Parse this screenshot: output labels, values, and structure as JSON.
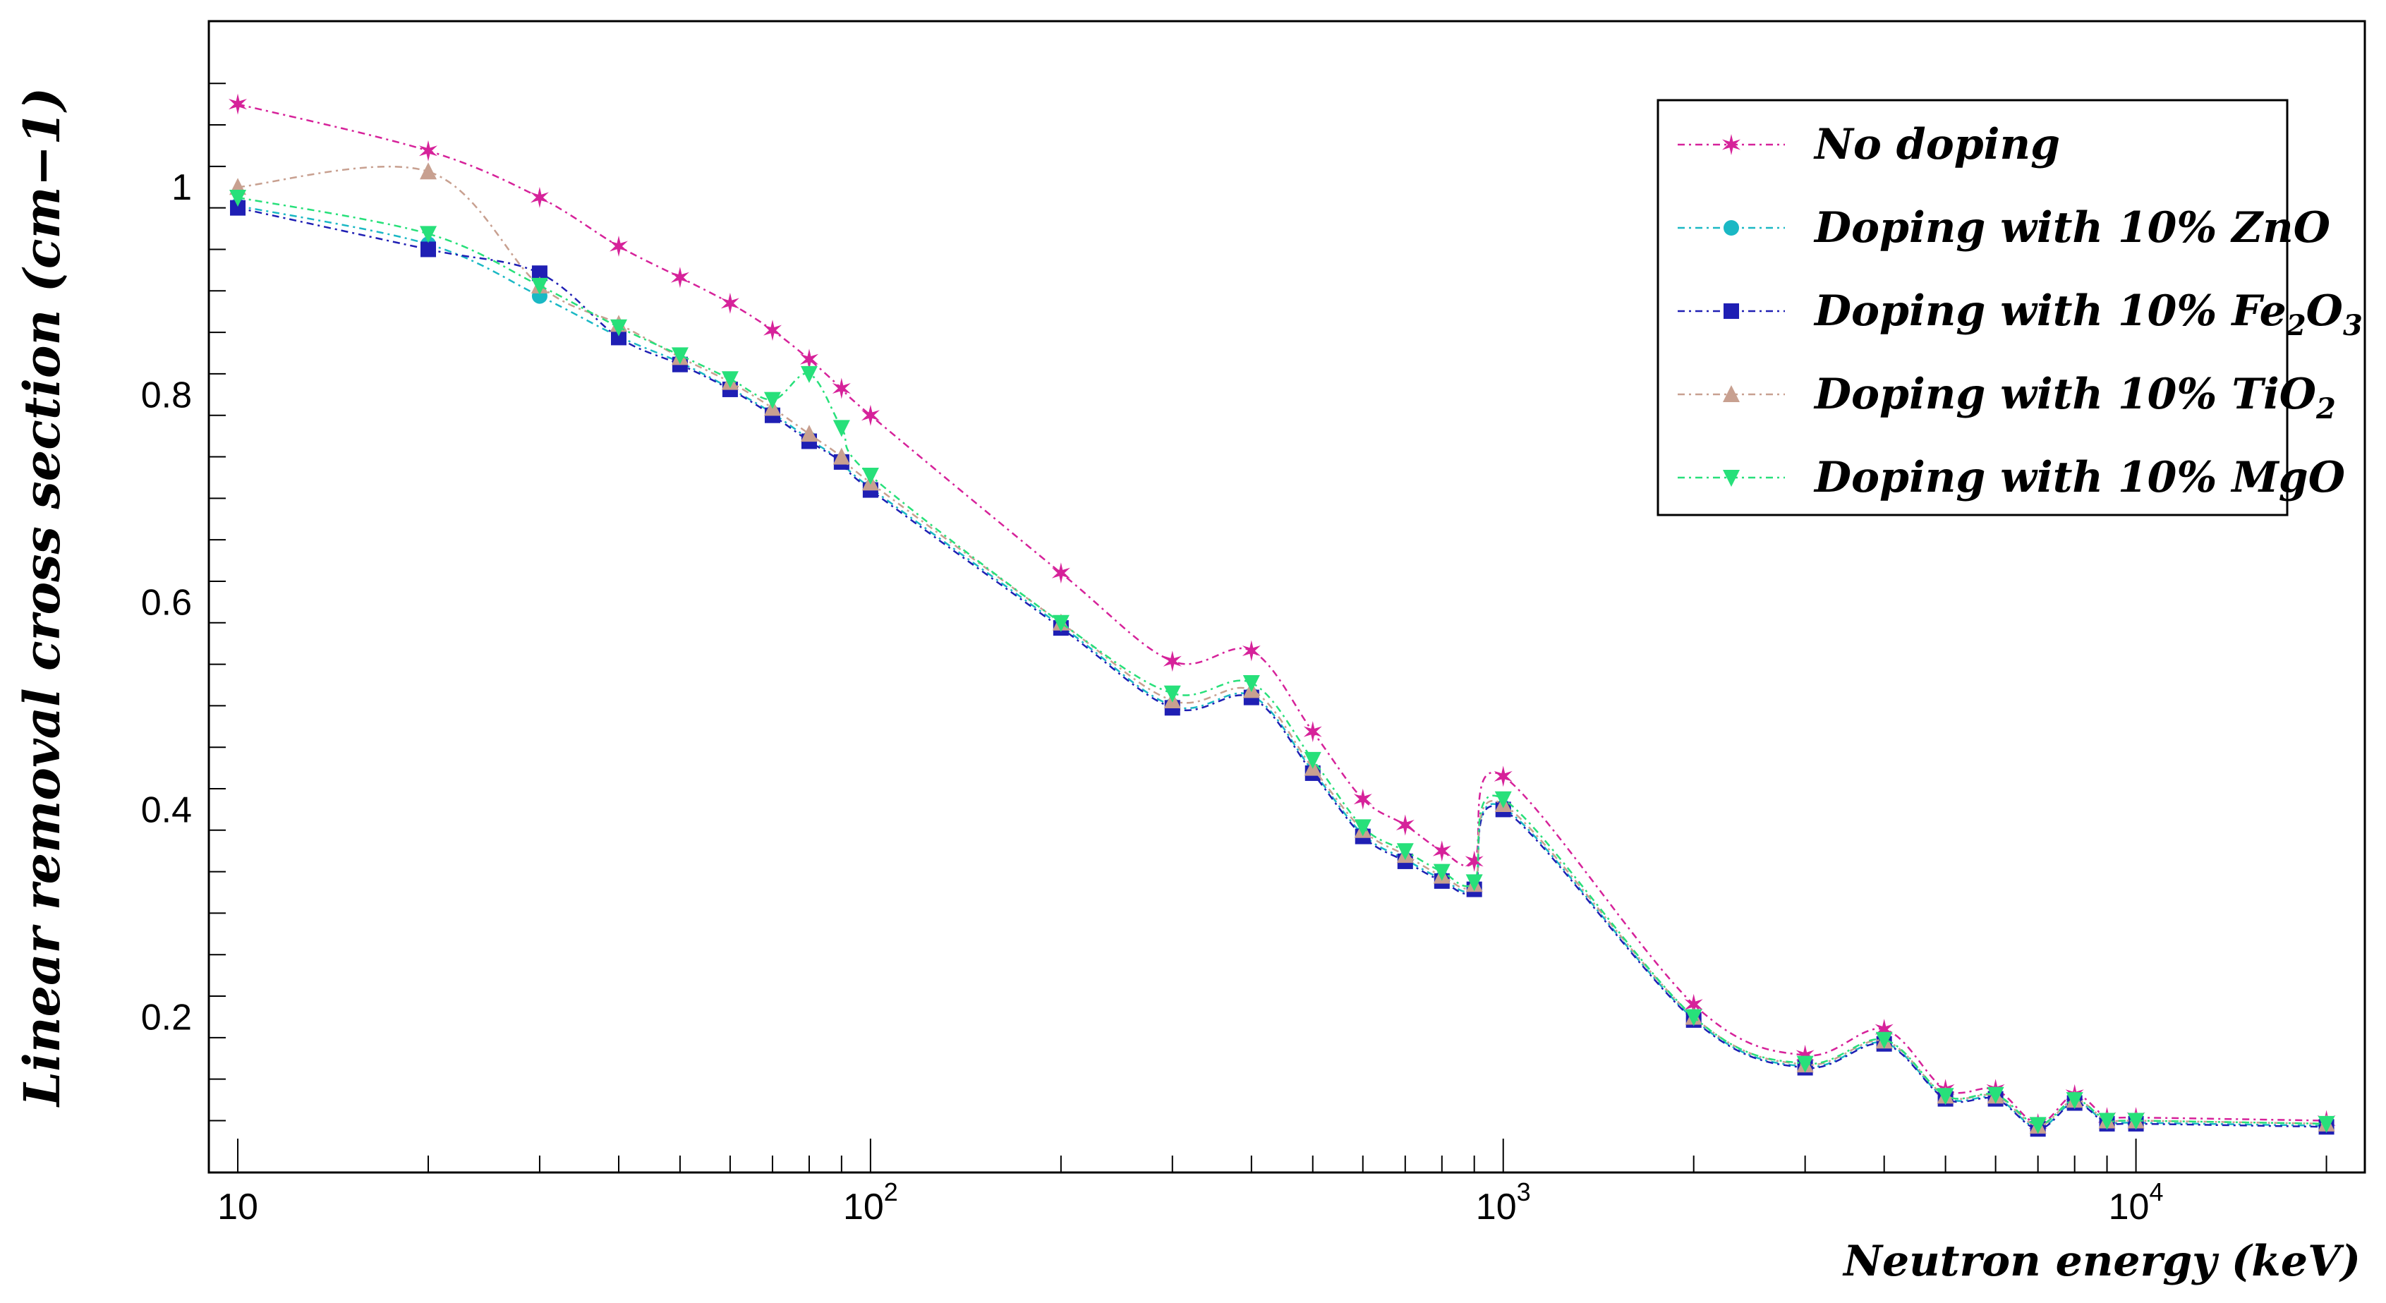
{
  "chart_data": {
    "type": "line",
    "xlabel": "Neutron energy (keV)",
    "ylabel": "Linear removal cross section (cm−1)",
    "xscale": "log",
    "xlim": [
      9,
      23000
    ],
    "ylim": [
      0.05,
      1.16
    ],
    "x": [
      10,
      20,
      30,
      40,
      50,
      60,
      70,
      80,
      90,
      100,
      200,
      300,
      400,
      500,
      600,
      700,
      800,
      900,
      1000,
      2000,
      3000,
      4000,
      5000,
      6000,
      7000,
      8000,
      9000,
      10000,
      20000
    ],
    "x_tick_labels": [
      {
        "value": 10,
        "base": "10",
        "exp": ""
      },
      {
        "value": 100,
        "base": "10",
        "exp": "2"
      },
      {
        "value": 1000,
        "base": "10",
        "exp": "3"
      },
      {
        "value": 10000,
        "base": "10",
        "exp": "4"
      }
    ],
    "y_ticks": [
      0.2,
      0.4,
      0.6,
      0.8,
      1
    ],
    "y_tick_labels": [
      "0.2",
      "0.4",
      "0.6",
      "0.8",
      "1"
    ],
    "legend_position": "top-right",
    "series": [
      {
        "name": "No doping",
        "name_parts": [
          {
            "t": "No doping"
          }
        ],
        "color": "#d6229a",
        "marker": "star",
        "values": [
          1.08,
          1.035,
          0.99,
          0.943,
          0.913,
          0.888,
          0.862,
          0.834,
          0.806,
          0.78,
          0.628,
          0.543,
          0.553,
          0.475,
          0.41,
          0.385,
          0.36,
          0.35,
          0.432,
          0.212,
          0.163,
          0.188,
          0.13,
          0.13,
          0.097,
          0.125,
          0.103,
          0.103,
          0.1
        ]
      },
      {
        "name": "Doping with 10% ZnO",
        "name_parts": [
          {
            "t": "Doping with 10% ZnO"
          }
        ],
        "color": "#1ab8c4",
        "marker": "circle",
        "values": [
          0.982,
          0.945,
          0.895,
          0.856,
          0.831,
          0.806,
          0.782,
          0.757,
          0.736,
          0.71,
          0.577,
          0.5,
          0.51,
          0.437,
          0.376,
          0.352,
          0.333,
          0.325,
          0.402,
          0.198,
          0.152,
          0.175,
          0.122,
          0.122,
          0.093,
          0.118,
          0.098,
          0.098,
          0.095
        ]
      },
      {
        "name": "Doping with 10% Fe2O3",
        "name_parts": [
          {
            "t": "Doping with 10% Fe"
          },
          {
            "t": "2",
            "sub": true
          },
          {
            "t": "O"
          },
          {
            "t": "3",
            "sub": true
          }
        ],
        "color": "#1f1fb4",
        "marker": "square",
        "values": [
          0.98,
          0.94,
          0.917,
          0.855,
          0.829,
          0.805,
          0.78,
          0.755,
          0.735,
          0.708,
          0.575,
          0.498,
          0.508,
          0.435,
          0.374,
          0.35,
          0.331,
          0.323,
          0.4,
          0.197,
          0.151,
          0.174,
          0.121,
          0.121,
          0.092,
          0.117,
          0.097,
          0.097,
          0.094
        ]
      },
      {
        "name": "Doping with 10% TiO2",
        "name_parts": [
          {
            "t": "Doping with 10% TiO"
          },
          {
            "t": "2",
            "sub": true
          }
        ],
        "color": "#c8a090",
        "marker": "triangle-up",
        "values": [
          1.0,
          1.015,
          0.905,
          0.868,
          0.836,
          0.812,
          0.787,
          0.762,
          0.74,
          0.715,
          0.58,
          0.505,
          0.515,
          0.44,
          0.38,
          0.356,
          0.336,
          0.328,
          0.405,
          0.2,
          0.154,
          0.177,
          0.124,
          0.124,
          0.095,
          0.12,
          0.1,
          0.1,
          0.097
        ]
      },
      {
        "name": "Doping with 10% MgO",
        "name_parts": [
          {
            "t": "Doping with 10% MgO"
          }
        ],
        "color": "#27e07a",
        "marker": "triangle-down",
        "values": [
          0.99,
          0.955,
          0.905,
          0.865,
          0.838,
          0.815,
          0.795,
          0.82,
          0.768,
          0.722,
          0.58,
          0.512,
          0.522,
          0.448,
          0.383,
          0.36,
          0.34,
          0.33,
          0.41,
          0.2,
          0.155,
          0.178,
          0.124,
          0.125,
          0.096,
          0.12,
          0.1,
          0.1,
          0.097
        ]
      }
    ]
  }
}
